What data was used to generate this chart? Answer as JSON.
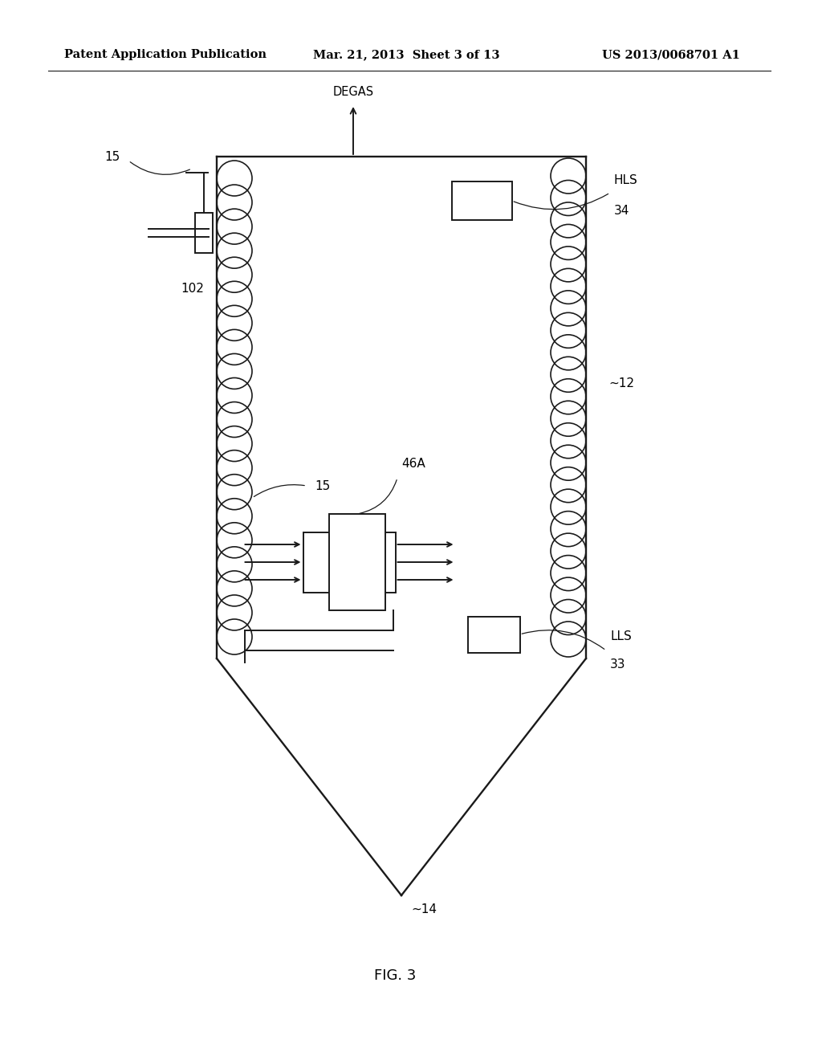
{
  "bg_color": "#ffffff",
  "header_left": "Patent Application Publication",
  "header_mid": "Mar. 21, 2013  Sheet 3 of 13",
  "header_right": "US 2013/0068701 A1",
  "fig_label": "FIG. 3",
  "degas_label": "DEGAS",
  "hls_label": "HLS",
  "hls_num": "34",
  "lls_label": "LLS",
  "lls_num": "33",
  "label_12": "12",
  "label_15_top": "15",
  "label_15_mid": "15",
  "label_102": "102",
  "label_46A": "46A",
  "label_14": "14",
  "line_color": "#1a1a1a",
  "line_width": 1.4
}
